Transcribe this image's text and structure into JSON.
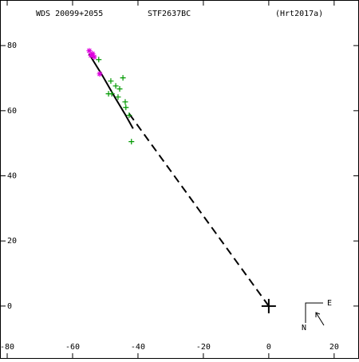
{
  "chart_data": {
    "type": "scatter",
    "title_left": "WDS 20099+2055",
    "title_center": "STF2637BC",
    "title_right": "(Hrt2017a)",
    "xlim": [
      -82.2,
      27.6
    ],
    "ylim": [
      -16.2,
      94
    ],
    "xticks": [
      -80,
      -60,
      -40,
      -20,
      0,
      20
    ],
    "yticks": [
      0,
      20,
      40,
      60,
      80
    ],
    "orbit": {
      "color": "#000000",
      "x": [
        -55,
        -51,
        -47,
        -44,
        -41.5
      ],
      "y": [
        77.5,
        71,
        64,
        59,
        54.5
      ]
    },
    "node_line": {
      "color": "#000000",
      "x": [
        0,
        -43
      ],
      "y": [
        0,
        59.5
      ]
    },
    "series": [
      {
        "color": "#009900",
        "marker": "plus",
        "x": [
          -52,
          -44.6,
          -49,
          -46.8,
          -45.6,
          -43.9,
          -42,
          -43.7,
          -48.3,
          -46.1,
          -42.7,
          -48
        ],
        "y": [
          75.7,
          70.1,
          65.2,
          67.6,
          66.7,
          62.7,
          50.5,
          61,
          69.1,
          64.2,
          58.6,
          65.2
        ]
      },
      {
        "color": "#dd00dd",
        "marker": "star",
        "x": [
          -54.9,
          -54.4,
          -53.4,
          -51.7,
          -53.9
        ],
        "y": [
          78.4,
          77,
          76.5,
          71.3,
          77.5
        ]
      }
    ],
    "compass_n": "N",
    "compass_e": "E"
  }
}
